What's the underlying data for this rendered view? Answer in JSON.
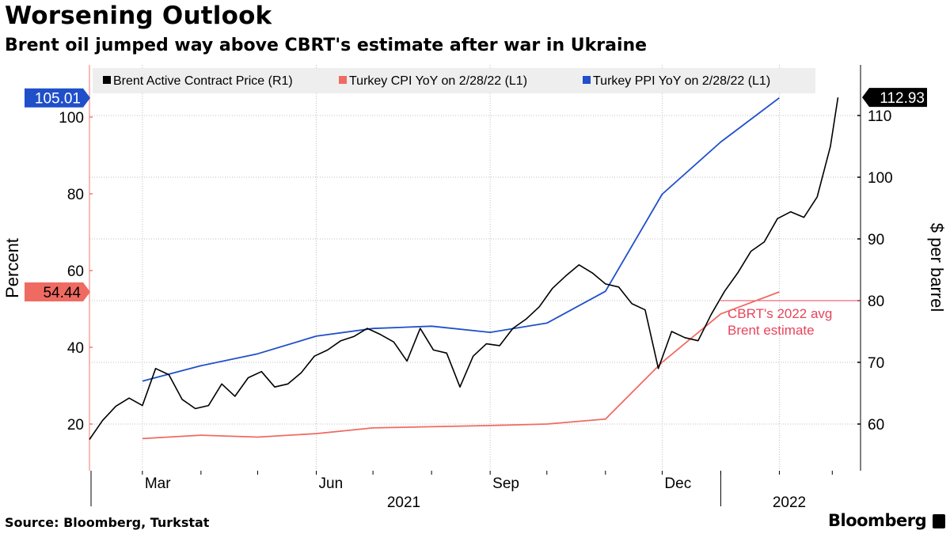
{
  "header": {
    "title": "Worsening Outlook",
    "subtitle": "Brent oil jumped way above CBRT's estimate after war in Ukraine"
  },
  "footer": {
    "source": "Source: Bloomberg, Turkstat",
    "brand": "Bloomberg"
  },
  "chart_data": {
    "type": "line",
    "title": "Worsening Outlook",
    "subtitle": "Brent oil jumped way above CBRT's estimate after war in Ukraine",
    "x_ticks": [
      "Mar",
      "Jun",
      "Sep",
      "Dec"
    ],
    "x_year_labels": [
      "2021",
      "2022"
    ],
    "x_range": [
      "2021-02-01",
      "2022-03-08"
    ],
    "left_axis": {
      "label": "Percent",
      "ticks": [
        20,
        40,
        60,
        80,
        100
      ],
      "ylim": [
        8,
        108
      ]
    },
    "right_axis": {
      "label": "$ per barrel",
      "ticks": [
        60,
        70,
        80,
        90,
        100,
        110
      ],
      "ylim": [
        53,
        114
      ]
    },
    "grid": true,
    "legend": {
      "placement": "top",
      "entries": [
        {
          "name": "Brent Active Contract Price (R1)",
          "color": "#000000"
        },
        {
          "name": "Turkey CPI YoY on 2/28/22 (L1)",
          "color": "#ef6b62"
        },
        {
          "name": "Turkey PPI YoY on 2/28/22 (L1)",
          "color": "#1f4fc9"
        }
      ]
    },
    "last_value_labels": [
      {
        "value": "105.01",
        "axis": "left",
        "color": "#1f4fc9"
      },
      {
        "value": "54.44",
        "axis": "left",
        "color": "#ef6b62"
      },
      {
        "value": "112.93",
        "axis": "right",
        "color": "#000000"
      }
    ],
    "reference_line": {
      "value": 80,
      "axis": "right",
      "color": "#e8455c"
    },
    "annotation": {
      "text": [
        "CBRT's 2022 avg",
        "Brent estimate"
      ],
      "color": "#e8455c"
    },
    "series": [
      {
        "name": "Turkey CPI YoY on 2/28/22 (L1)",
        "axis": "left",
        "color": "#ef6b62",
        "points": [
          [
            "2021-03-01",
            16.2
          ],
          [
            "2021-04-01",
            17.1
          ],
          [
            "2021-05-01",
            16.6
          ],
          [
            "2021-06-01",
            17.5
          ],
          [
            "2021-07-01",
            19.0
          ],
          [
            "2021-08-01",
            19.3
          ],
          [
            "2021-09-01",
            19.6
          ],
          [
            "2021-10-01",
            20.0
          ],
          [
            "2021-11-01",
            21.3
          ],
          [
            "2021-12-01",
            36.1
          ],
          [
            "2022-01-01",
            48.7
          ],
          [
            "2022-02-01",
            54.44
          ]
        ]
      },
      {
        "name": "Turkey PPI YoY on 2/28/22 (L1)",
        "axis": "left",
        "color": "#1f4fc9",
        "points": [
          [
            "2021-03-01",
            31.2
          ],
          [
            "2021-04-01",
            35.2
          ],
          [
            "2021-05-01",
            38.3
          ],
          [
            "2021-06-01",
            42.9
          ],
          [
            "2021-07-01",
            44.9
          ],
          [
            "2021-08-01",
            45.5
          ],
          [
            "2021-09-01",
            43.9
          ],
          [
            "2021-10-01",
            46.3
          ],
          [
            "2021-11-01",
            54.6
          ],
          [
            "2021-12-01",
            79.9
          ],
          [
            "2022-01-01",
            93.5
          ],
          [
            "2022-02-01",
            105.01
          ]
        ]
      },
      {
        "name": "Brent Active Contract Price (R1)",
        "axis": "right",
        "color": "#000000",
        "points": [
          [
            "2021-02-01",
            57.5
          ],
          [
            "2021-02-08",
            60.6
          ],
          [
            "2021-02-15",
            62.9
          ],
          [
            "2021-02-22",
            64.2
          ],
          [
            "2021-03-01",
            63.0
          ],
          [
            "2021-03-08",
            69.0
          ],
          [
            "2021-03-15",
            68.0
          ],
          [
            "2021-03-22",
            64.0
          ],
          [
            "2021-03-29",
            62.5
          ],
          [
            "2021-04-05",
            63.0
          ],
          [
            "2021-04-12",
            66.5
          ],
          [
            "2021-04-19",
            64.5
          ],
          [
            "2021-04-26",
            67.5
          ],
          [
            "2021-05-03",
            68.5
          ],
          [
            "2021-05-10",
            66.0
          ],
          [
            "2021-05-17",
            66.5
          ],
          [
            "2021-05-24",
            68.3
          ],
          [
            "2021-05-31",
            71.0
          ],
          [
            "2021-06-07",
            72.0
          ],
          [
            "2021-06-14",
            73.5
          ],
          [
            "2021-06-21",
            74.2
          ],
          [
            "2021-06-28",
            75.5
          ],
          [
            "2021-07-05",
            74.5
          ],
          [
            "2021-07-12",
            73.3
          ],
          [
            "2021-07-19",
            70.2
          ],
          [
            "2021-07-26",
            75.5
          ],
          [
            "2021-08-02",
            72.0
          ],
          [
            "2021-08-09",
            71.5
          ],
          [
            "2021-08-16",
            66.0
          ],
          [
            "2021-08-23",
            71.0
          ],
          [
            "2021-08-30",
            73.0
          ],
          [
            "2021-09-06",
            72.7
          ],
          [
            "2021-09-13",
            75.5
          ],
          [
            "2021-09-20",
            77.0
          ],
          [
            "2021-09-27",
            79.0
          ],
          [
            "2021-10-04",
            82.0
          ],
          [
            "2021-10-11",
            84.0
          ],
          [
            "2021-10-18",
            85.8
          ],
          [
            "2021-10-25",
            84.5
          ],
          [
            "2021-11-01",
            82.7
          ],
          [
            "2021-11-08",
            82.2
          ],
          [
            "2021-11-15",
            79.5
          ],
          [
            "2021-11-22",
            78.5
          ],
          [
            "2021-11-29",
            69.0
          ],
          [
            "2021-12-06",
            75.0
          ],
          [
            "2021-12-13",
            74.0
          ],
          [
            "2021-12-20",
            73.5
          ],
          [
            "2021-12-27",
            77.8
          ],
          [
            "2022-01-03",
            81.5
          ],
          [
            "2022-01-10",
            84.5
          ],
          [
            "2022-01-17",
            88.0
          ],
          [
            "2022-01-24",
            89.5
          ],
          [
            "2022-01-31",
            93.3
          ],
          [
            "2022-02-07",
            94.4
          ],
          [
            "2022-02-14",
            93.5
          ],
          [
            "2022-02-21",
            96.8
          ],
          [
            "2022-02-28",
            104.97
          ],
          [
            "2022-03-04",
            112.93
          ]
        ]
      }
    ]
  }
}
